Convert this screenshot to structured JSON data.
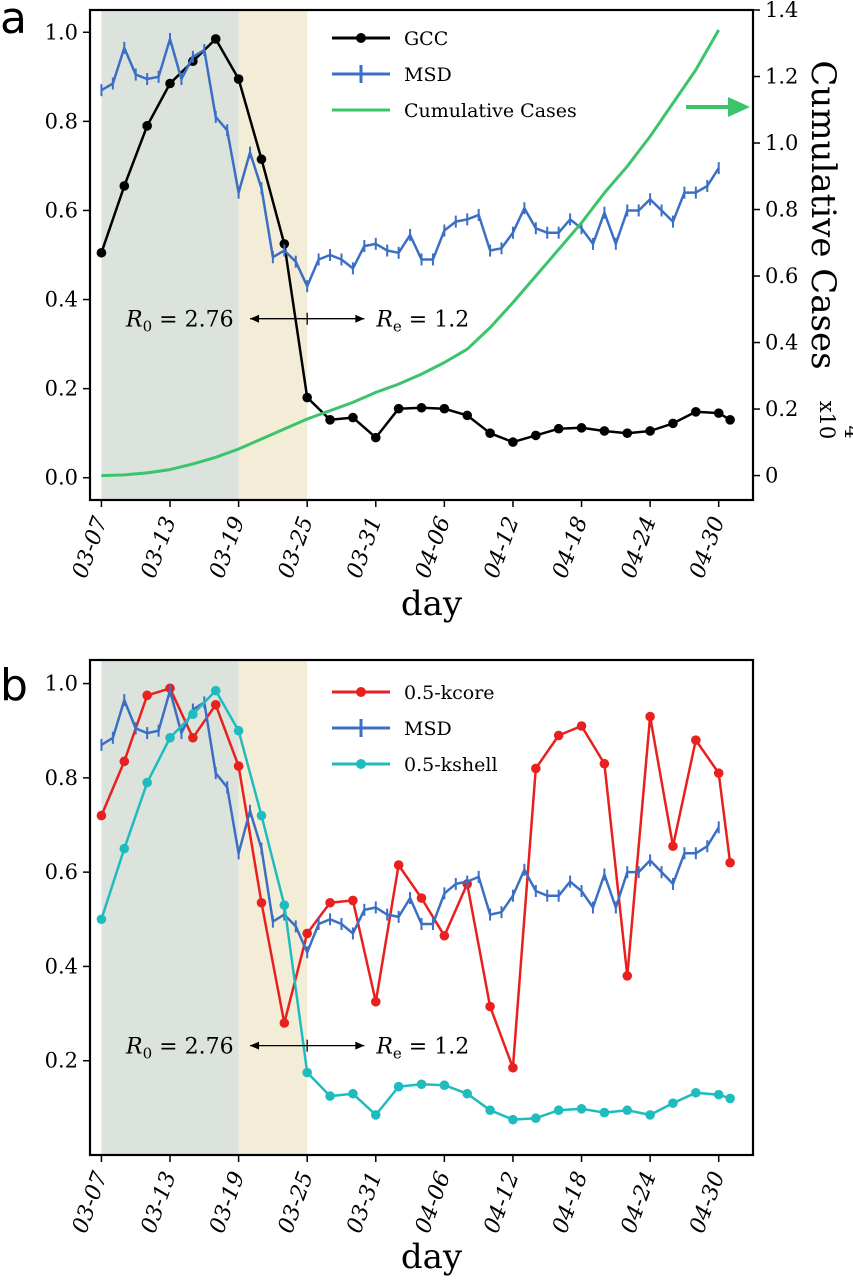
{
  "chart_data": [
    {
      "panel": "a",
      "type": "line",
      "xlabel": "day",
      "ylabel": "",
      "y2label": "Cumulative Cases",
      "y2_multiplier": "x10",
      "y2_multiplier_exp": "4",
      "ylim": [
        -0.05,
        1.05
      ],
      "y2lim": [
        -0.0735,
        1.4
      ],
      "yticks": [
        0.0,
        0.2,
        0.4,
        0.6,
        0.8,
        1.0
      ],
      "y2ticks": [
        0,
        0.2,
        0.4,
        0.6,
        0.8,
        1.0,
        1.2,
        1.4
      ],
      "ytick_labels": [
        "0.0",
        "0.2",
        "0.4",
        "0.6",
        "0.8",
        "1.0"
      ],
      "y2tick_labels": [
        "0",
        "0.2",
        "0.4",
        "0.6",
        "0.8",
        "1.0",
        "1.2",
        "1.4"
      ],
      "xticks": [
        0,
        6,
        12,
        18,
        24,
        30,
        36,
        42,
        48,
        54
      ],
      "xtick_labels": [
        "03-07",
        "03-13",
        "03-19",
        "03-25",
        "03-31",
        "04-06",
        "04-12",
        "04-18",
        "04-24",
        "04-30"
      ],
      "shaded_regions": [
        {
          "from": 0,
          "to": 12,
          "color": "#dbe3dc"
        },
        {
          "from": 12,
          "to": 18,
          "color": "#f3edd7"
        }
      ],
      "annotations": {
        "r0_label": "R",
        "r0_sub": "0",
        "r0_value": " = 2.76",
        "re_label": "R",
        "re_sub": "e",
        "re_value": " = 1.2",
        "y": 0.357,
        "arrow_from": 13,
        "arrow_to": 23,
        "arrow_mid": 18
      },
      "legend_position": "top-center",
      "series": [
        {
          "name": "GCC",
          "color": "#000000",
          "marker": "circle",
          "axis": "left",
          "x": [
            0,
            2,
            4,
            6,
            8,
            10,
            12,
            14,
            16,
            18,
            20,
            22,
            24,
            26,
            28,
            30,
            32,
            34,
            36,
            38,
            40,
            42,
            44,
            46,
            48,
            50,
            52,
            54
          ],
          "y": [
            0.505,
            0.655,
            0.79,
            0.885,
            0.935,
            0.985,
            0.895,
            0.715,
            0.525,
            0.18,
            0.13,
            0.135,
            0.09,
            0.155,
            0.157,
            0.155,
            0.14,
            0.1,
            0.08,
            0.095,
            0.11,
            0.112,
            0.105,
            0.1,
            0.105,
            0.122,
            0.148,
            0.145
          ],
          "x_extra": [
            55
          ],
          "y_extra": [
            0.13
          ]
        },
        {
          "name": "MSD",
          "color": "#3b6fc4",
          "marker": "errorbar",
          "axis": "left",
          "x": [
            0,
            1,
            2,
            3,
            4,
            5,
            6,
            7,
            8,
            9,
            10,
            11,
            12,
            13,
            14,
            15,
            16,
            17,
            18,
            19,
            20,
            21,
            22,
            23,
            24,
            25,
            26,
            27,
            28,
            29,
            30,
            31,
            32,
            33,
            34,
            35,
            36,
            37,
            38,
            39,
            40,
            41,
            42,
            43,
            44,
            45,
            46,
            47,
            48,
            49,
            50,
            51,
            52,
            53,
            54
          ],
          "y": [
            0.87,
            0.885,
            0.965,
            0.905,
            0.895,
            0.9,
            0.985,
            0.895,
            0.945,
            0.96,
            0.81,
            0.78,
            0.64,
            0.73,
            0.65,
            0.495,
            0.51,
            0.485,
            0.43,
            0.49,
            0.5,
            0.49,
            0.47,
            0.52,
            0.525,
            0.51,
            0.505,
            0.545,
            0.49,
            0.49,
            0.555,
            0.575,
            0.58,
            0.59,
            0.51,
            0.515,
            0.55,
            0.605,
            0.56,
            0.55,
            0.55,
            0.58,
            0.56,
            0.525,
            0.595,
            0.525,
            0.6,
            0.6,
            0.625,
            0.6,
            0.575,
            0.64,
            0.64,
            0.655,
            0.695
          ]
        },
        {
          "name": "Cumulative Cases",
          "color": "#3cc46a",
          "marker": "none",
          "axis": "right",
          "x": [
            0,
            2,
            4,
            6,
            8,
            10,
            12,
            14,
            16,
            18,
            20,
            22,
            24,
            26,
            28,
            30,
            32,
            34,
            36,
            38,
            40,
            42,
            44,
            46,
            48,
            50,
            52,
            54
          ],
          "y": [
            0.0,
            0.002,
            0.008,
            0.018,
            0.035,
            0.055,
            0.08,
            0.11,
            0.14,
            0.17,
            0.195,
            0.22,
            0.25,
            0.275,
            0.305,
            0.34,
            0.38,
            0.445,
            0.52,
            0.6,
            0.68,
            0.76,
            0.85,
            0.93,
            1.02,
            1.12,
            1.22,
            1.34
          ]
        }
      ]
    },
    {
      "panel": "b",
      "type": "line",
      "xlabel": "day",
      "ylabel": "",
      "ylim": [
        0.0,
        1.05
      ],
      "yticks": [
        0.2,
        0.4,
        0.6,
        0.8,
        1.0
      ],
      "ytick_labels": [
        "0.2",
        "0.4",
        "0.6",
        "0.8",
        "1.0"
      ],
      "xticks": [
        0,
        6,
        12,
        18,
        24,
        30,
        36,
        42,
        48,
        54
      ],
      "xtick_labels": [
        "03-07",
        "03-13",
        "03-19",
        "03-25",
        "03-31",
        "04-06",
        "04-12",
        "04-18",
        "04-24",
        "04-30"
      ],
      "shaded_regions": [
        {
          "from": 0,
          "to": 12,
          "color": "#dbe3dc"
        },
        {
          "from": 12,
          "to": 18,
          "color": "#f3edd7"
        }
      ],
      "annotations": {
        "r0_label": "R",
        "r0_sub": "0",
        "r0_value": " = 2.76",
        "re_label": "R",
        "re_sub": "e",
        "re_value": " = 1.2",
        "y": 0.232,
        "arrow_from": 13,
        "arrow_to": 23,
        "arrow_mid": 18
      },
      "legend_position": "top-center",
      "series": [
        {
          "name": "0.5-kcore",
          "color": "#e8211f",
          "marker": "circle",
          "x": [
            0,
            2,
            4,
            6,
            8,
            10,
            12,
            14,
            16,
            18,
            20,
            22,
            24,
            26,
            28,
            30,
            32,
            34,
            36,
            38,
            40,
            42,
            44,
            46,
            48,
            50,
            52,
            54,
            55
          ],
          "y": [
            0.72,
            0.835,
            0.975,
            0.99,
            0.885,
            0.955,
            0.825,
            0.535,
            0.28,
            0.47,
            0.535,
            0.54,
            0.325,
            0.615,
            0.545,
            0.465,
            0.575,
            0.315,
            0.185,
            0.82,
            0.89,
            0.91,
            0.83,
            0.38,
            0.93,
            0.655,
            0.88,
            0.81,
            0.62
          ]
        },
        {
          "name": "MSD",
          "color": "#3b6fc4",
          "marker": "errorbar",
          "x": [
            0,
            1,
            2,
            3,
            4,
            5,
            6,
            7,
            8,
            9,
            10,
            11,
            12,
            13,
            14,
            15,
            16,
            17,
            18,
            19,
            20,
            21,
            22,
            23,
            24,
            25,
            26,
            27,
            28,
            29,
            30,
            31,
            32,
            33,
            34,
            35,
            36,
            37,
            38,
            39,
            40,
            41,
            42,
            43,
            44,
            45,
            46,
            47,
            48,
            49,
            50,
            51,
            52,
            53,
            54
          ],
          "y": [
            0.87,
            0.885,
            0.965,
            0.905,
            0.895,
            0.9,
            0.985,
            0.895,
            0.945,
            0.96,
            0.81,
            0.78,
            0.64,
            0.73,
            0.65,
            0.495,
            0.51,
            0.485,
            0.43,
            0.49,
            0.5,
            0.49,
            0.47,
            0.52,
            0.525,
            0.51,
            0.505,
            0.545,
            0.49,
            0.49,
            0.555,
            0.575,
            0.58,
            0.59,
            0.51,
            0.515,
            0.55,
            0.605,
            0.56,
            0.55,
            0.55,
            0.58,
            0.56,
            0.525,
            0.595,
            0.525,
            0.6,
            0.6,
            0.625,
            0.6,
            0.575,
            0.64,
            0.64,
            0.655,
            0.695
          ]
        },
        {
          "name": "0.5-kshell",
          "color": "#1fbcbf",
          "marker": "circle",
          "x": [
            0,
            2,
            4,
            6,
            8,
            10,
            12,
            14,
            16,
            18,
            20,
            22,
            24,
            26,
            28,
            30,
            32,
            34,
            36,
            38,
            40,
            42,
            44,
            46,
            48,
            50,
            52,
            54,
            55
          ],
          "y": [
            0.5,
            0.65,
            0.79,
            0.885,
            0.935,
            0.985,
            0.9,
            0.72,
            0.53,
            0.175,
            0.125,
            0.13,
            0.085,
            0.145,
            0.15,
            0.148,
            0.13,
            0.095,
            0.075,
            0.078,
            0.095,
            0.098,
            0.09,
            0.095,
            0.085,
            0.11,
            0.132,
            0.128,
            0.12
          ]
        }
      ]
    }
  ],
  "panel_letters": [
    "a",
    "b"
  ]
}
